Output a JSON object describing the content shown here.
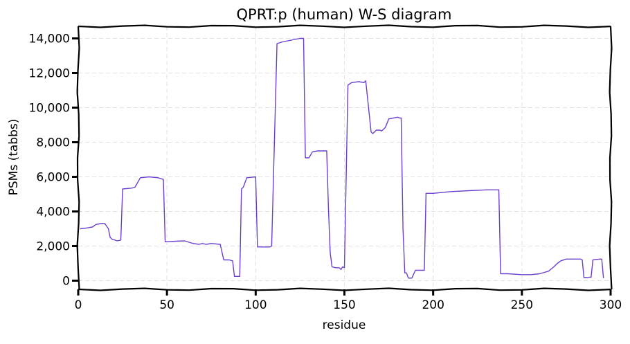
{
  "chart_data": {
    "type": "line",
    "title": "QPRT:p (human) W-S diagram",
    "xlabel": "residue",
    "ylabel": "PSMs (tabbs)",
    "xlim": [
      0,
      300
    ],
    "ylim": [
      -500,
      14700
    ],
    "xticks": [
      0,
      50,
      100,
      150,
      200,
      250,
      300
    ],
    "xtick_labels": [
      "0",
      "50",
      "100",
      "150",
      "200",
      "250",
      "300"
    ],
    "yticks": [
      0,
      2000,
      4000,
      6000,
      8000,
      10000,
      12000,
      14000
    ],
    "ytick_labels": [
      "0",
      "2,000",
      "4,000",
      "6,000",
      "8,000",
      "10,000",
      "12,000",
      "14,000"
    ],
    "grid": true,
    "line_color": "#6a3fcf",
    "series": [
      {
        "x": [
          1,
          5,
          8,
          10,
          13,
          15,
          17,
          18,
          19,
          22,
          24,
          25,
          30,
          32,
          35,
          40,
          45,
          48,
          49,
          50,
          55,
          60,
          63,
          65,
          68,
          70,
          72,
          75,
          80,
          82,
          83,
          85,
          87,
          88,
          90,
          91,
          92,
          93,
          95,
          100,
          101,
          102,
          105,
          108,
          109,
          112,
          115,
          120,
          125,
          127,
          128,
          130,
          132,
          135,
          138,
          140,
          141,
          142,
          143,
          145,
          147,
          148,
          149,
          150,
          152,
          154,
          158,
          161,
          162,
          165,
          166,
          168,
          170,
          171,
          173,
          175,
          180,
          181,
          182,
          183,
          184,
          185,
          186,
          188,
          190,
          194,
          195,
          196,
          200,
          210,
          220,
          230,
          236,
          237,
          238,
          242,
          250,
          255,
          260,
          265,
          268,
          270,
          272,
          275,
          278,
          280,
          283,
          284,
          285,
          286,
          287,
          288,
          289,
          290,
          294,
          295,
          296
        ],
        "y": [
          3000,
          3050,
          3100,
          3250,
          3300,
          3300,
          3000,
          2500,
          2400,
          2300,
          2350,
          5300,
          5350,
          5400,
          5950,
          6000,
          5950,
          5850,
          2250,
          2250,
          2280,
          2300,
          2200,
          2150,
          2100,
          2150,
          2100,
          2150,
          2100,
          1200,
          1200,
          1200,
          1150,
          250,
          250,
          250,
          5300,
          5400,
          5950,
          6000,
          1950,
          1950,
          1950,
          1950,
          2000,
          13700,
          13800,
          13900,
          14000,
          14000,
          7100,
          7100,
          7450,
          7500,
          7500,
          7500,
          4200,
          1600,
          800,
          750,
          750,
          650,
          800,
          750,
          11300,
          11450,
          11500,
          11450,
          11550,
          8600,
          8500,
          8700,
          8700,
          8650,
          8850,
          9350,
          9450,
          9400,
          9400,
          3000,
          450,
          450,
          150,
          150,
          600,
          600,
          600,
          5050,
          5050,
          5150,
          5200,
          5250,
          5250,
          5250,
          400,
          400,
          350,
          350,
          400,
          550,
          800,
          1000,
          1150,
          1250,
          1250,
          1250,
          1250,
          1200,
          180,
          180,
          180,
          200,
          200,
          1200,
          1250,
          1250,
          150
        ]
      }
    ]
  }
}
